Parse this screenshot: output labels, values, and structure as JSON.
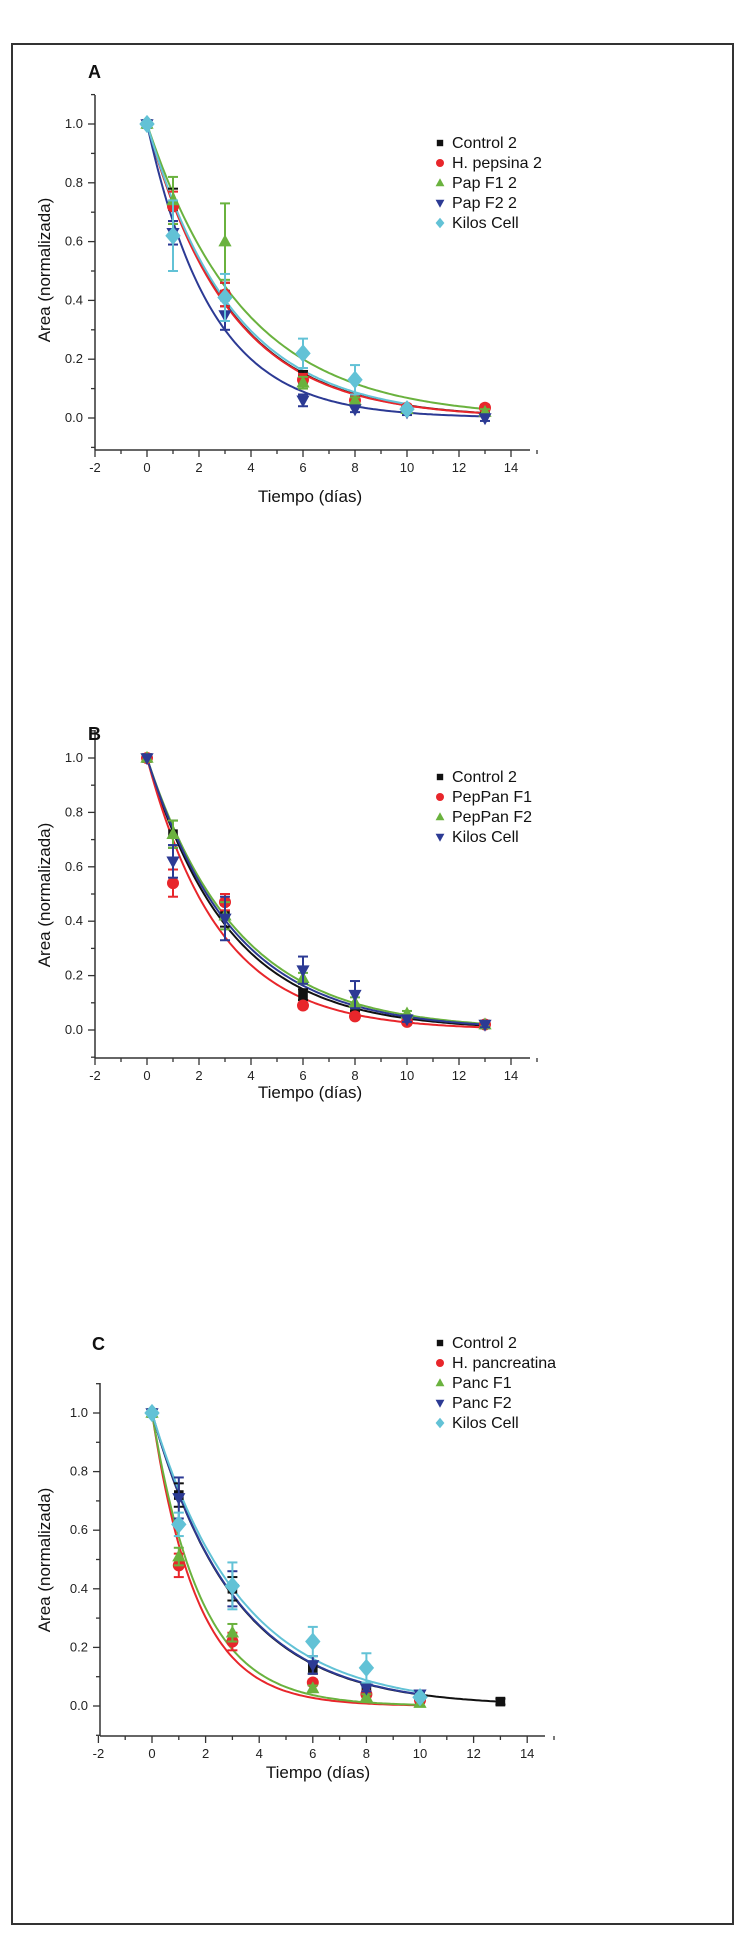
{
  "colors": {
    "Control": "#111111",
    "red": "#e8262b",
    "green": "#6ab23e",
    "blue": "#2c3a94",
    "cyan": "#62c2d6"
  },
  "chart_data": [
    {
      "type": "scatter",
      "panel_label": "A",
      "xlabel": "Tiempo (días)",
      "ylabel": "Area (normalizada)",
      "xlim": [
        -2,
        15
      ],
      "ylim": [
        -0.1,
        1.1
      ],
      "xticks": [
        "-2",
        "0",
        "2",
        "4",
        "6",
        "8",
        "10",
        "12",
        "14"
      ],
      "yticks": [
        "0.0",
        "0.2",
        "0.4",
        "0.6",
        "0.8",
        "1.0"
      ],
      "legend": "top-right",
      "fit": "exponential decay",
      "series": [
        {
          "name": "Control 2",
          "color": "#111111",
          "marker": "square",
          "x": [
            0,
            1,
            3,
            6,
            8,
            10,
            13
          ],
          "y": [
            1,
            0.72,
            0.42,
            0.14,
            0.06,
            0.03,
            0.02
          ],
          "err": [
            0,
            0.06,
            0.04,
            0.02,
            0.01,
            0.01,
            0.01
          ]
        },
        {
          "name": "H. pepsina 2",
          "color": "#e8262b",
          "marker": "circle",
          "x": [
            0,
            1,
            3,
            6,
            8,
            10,
            13
          ],
          "y": [
            1,
            0.72,
            0.42,
            0.13,
            0.06,
            0.035,
            0.035
          ],
          "err": [
            0,
            0.05,
            0.04,
            0.02,
            0.01,
            0.01,
            0.01
          ]
        },
        {
          "name": "Pap F1 2",
          "color": "#6ab23e",
          "marker": "triangle-up",
          "x": [
            0,
            1,
            3,
            6,
            8,
            10,
            13
          ],
          "y": [
            1,
            0.74,
            0.6,
            0.12,
            0.06,
            0.03,
            0.02
          ],
          "err": [
            0,
            0.08,
            0.13,
            0.02,
            0.01,
            0.01,
            0.01
          ]
        },
        {
          "name": "Pap F2 2",
          "color": "#2c3a94",
          "marker": "triangle-down",
          "x": [
            0,
            1,
            3,
            6,
            8,
            10,
            13
          ],
          "y": [
            1,
            0.63,
            0.35,
            0.06,
            0.03,
            0.02,
            0.0
          ],
          "err": [
            0,
            0.04,
            0.05,
            0.02,
            0.01,
            0.01,
            0.01
          ]
        },
        {
          "name": "Kilos Cell",
          "color": "#62c2d6",
          "marker": "diamond",
          "x": [
            0,
            1,
            3,
            6,
            8,
            10
          ],
          "y": [
            1,
            0.62,
            0.41,
            0.22,
            0.13,
            0.03
          ],
          "err": [
            0,
            0.12,
            0.08,
            0.05,
            0.05,
            0.01
          ]
        }
      ]
    },
    {
      "type": "scatter",
      "panel_label": "B",
      "xlabel": "Tiempo (días)",
      "ylabel": "Area (normalizada)",
      "xlim": [
        -2,
        15
      ],
      "ylim": [
        -0.1,
        1.1
      ],
      "xticks": [
        "-2",
        "0",
        "2",
        "4",
        "6",
        "8",
        "10",
        "12",
        "14"
      ],
      "yticks": [
        "0.0",
        "0.2",
        "0.4",
        "0.6",
        "0.8",
        "1.0"
      ],
      "legend": "top-right",
      "fit": "exponential decay",
      "series": [
        {
          "name": "Control 2",
          "color": "#111111",
          "marker": "square",
          "x": [
            0,
            1,
            3,
            6,
            8,
            10,
            13
          ],
          "y": [
            1,
            0.72,
            0.42,
            0.13,
            0.06,
            0.04,
            0.02
          ],
          "err": [
            0,
            0.05,
            0.04,
            0.02,
            0.01,
            0.01,
            0.01
          ]
        },
        {
          "name": "PepPan F1",
          "color": "#e8262b",
          "marker": "circle",
          "x": [
            0,
            1,
            3,
            6,
            8,
            10,
            13
          ],
          "y": [
            1,
            0.54,
            0.47,
            0.09,
            0.05,
            0.03,
            0.02
          ],
          "err": [
            0,
            0.05,
            0.03,
            0.01,
            0.01,
            0.01,
            0.01
          ]
        },
        {
          "name": "PepPan F2",
          "color": "#6ab23e",
          "marker": "triangle-up",
          "x": [
            0,
            1,
            3,
            6,
            8,
            10,
            13
          ],
          "y": [
            1,
            0.72,
            0.42,
            0.19,
            0.1,
            0.06,
            0.02
          ],
          "err": [
            0,
            0.05,
            0.05,
            0.02,
            0.02,
            0.01,
            0.01
          ]
        },
        {
          "name": "Kilos Cell",
          "color": "#2c3a94",
          "marker": "triangle-down",
          "x": [
            0,
            1,
            3,
            6,
            8,
            10,
            13
          ],
          "y": [
            1,
            0.62,
            0.41,
            0.22,
            0.13,
            0.04,
            0.02
          ],
          "err": [
            0,
            0.06,
            0.08,
            0.05,
            0.05,
            0.01,
            0.01
          ]
        }
      ]
    },
    {
      "type": "scatter",
      "panel_label": "C",
      "xlabel": "Tiempo (días)",
      "ylabel": "Area (normalizada)",
      "xlim": [
        -2,
        15
      ],
      "ylim": [
        -0.1,
        1.1
      ],
      "xticks": [
        "-2",
        "0",
        "2",
        "4",
        "6",
        "8",
        "10",
        "12",
        "14"
      ],
      "yticks": [
        "0.0",
        "0.2",
        "0.4",
        "0.6",
        "0.8",
        "1.0"
      ],
      "legend": "top-right",
      "fit": "exponential decay",
      "series": [
        {
          "name": "Control 2",
          "color": "#111111",
          "marker": "square",
          "x": [
            0,
            1,
            3,
            6,
            8,
            10,
            13
          ],
          "y": [
            1,
            0.72,
            0.4,
            0.13,
            0.06,
            0.03,
            0.015
          ],
          "err": [
            0,
            0.04,
            0.04,
            0.02,
            0.01,
            0.01,
            0.01
          ]
        },
        {
          "name": "H. pancreatina",
          "color": "#e8262b",
          "marker": "circle",
          "x": [
            0,
            1,
            3,
            6,
            8,
            10
          ],
          "y": [
            1,
            0.48,
            0.22,
            0.08,
            0.04,
            0.02
          ],
          "err": [
            0,
            0.04,
            0.03,
            0.01,
            0.01,
            0.01
          ]
        },
        {
          "name": "Panc F1",
          "color": "#6ab23e",
          "marker": "triangle-up",
          "x": [
            0,
            1,
            3,
            6,
            8,
            10
          ],
          "y": [
            1,
            0.51,
            0.25,
            0.06,
            0.03,
            0.01
          ],
          "err": [
            0,
            0.03,
            0.03,
            0.01,
            0.01,
            0.01
          ]
        },
        {
          "name": "Panc F2",
          "color": "#2c3a94",
          "marker": "triangle-down",
          "x": [
            0,
            1,
            3,
            6,
            8,
            10
          ],
          "y": [
            1,
            0.71,
            0.4,
            0.14,
            0.06,
            0.04
          ],
          "err": [
            0,
            0.07,
            0.06,
            0.03,
            0.01,
            0.01
          ]
        },
        {
          "name": "Kilos Cell",
          "color": "#62c2d6",
          "marker": "diamond",
          "x": [
            0,
            1,
            3,
            6,
            8,
            10
          ],
          "y": [
            1,
            0.62,
            0.41,
            0.22,
            0.13,
            0.03
          ],
          "err": [
            0,
            0.04,
            0.08,
            0.05,
            0.05,
            0.01
          ]
        }
      ]
    }
  ]
}
